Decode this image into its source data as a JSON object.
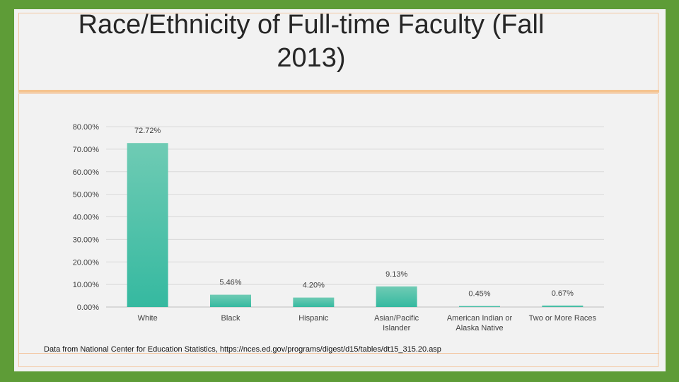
{
  "chart_data": {
    "type": "bar",
    "title": "Race/Ethnicity of Full-time Faculty (Fall 2013)",
    "categories": [
      "White",
      "Black",
      "Hispanic",
      "Asian/Pacific Islander",
      "American Indian or Alaska Native",
      "Two or More Races"
    ],
    "values": [
      72.72,
      5.46,
      4.2,
      9.13,
      0.45,
      0.67
    ],
    "value_labels": [
      "72.72%",
      "5.46%",
      "4.20%",
      "9.13%",
      "0.45%",
      "0.67%"
    ],
    "ylim": [
      0,
      80
    ],
    "yticks": [
      "0.00%",
      "10.00%",
      "20.00%",
      "30.00%",
      "40.00%",
      "50.00%",
      "60.00%",
      "70.00%",
      "80.00%"
    ],
    "grid": true,
    "legend": "none",
    "bar_color_top": "#6fcbb4",
    "bar_color_bottom": "#35b9a0"
  },
  "source_note": "Data from National Center for Education Statistics, https://nces.ed.gov/programs/digest/d15/tables/dt15_315.20.asp"
}
